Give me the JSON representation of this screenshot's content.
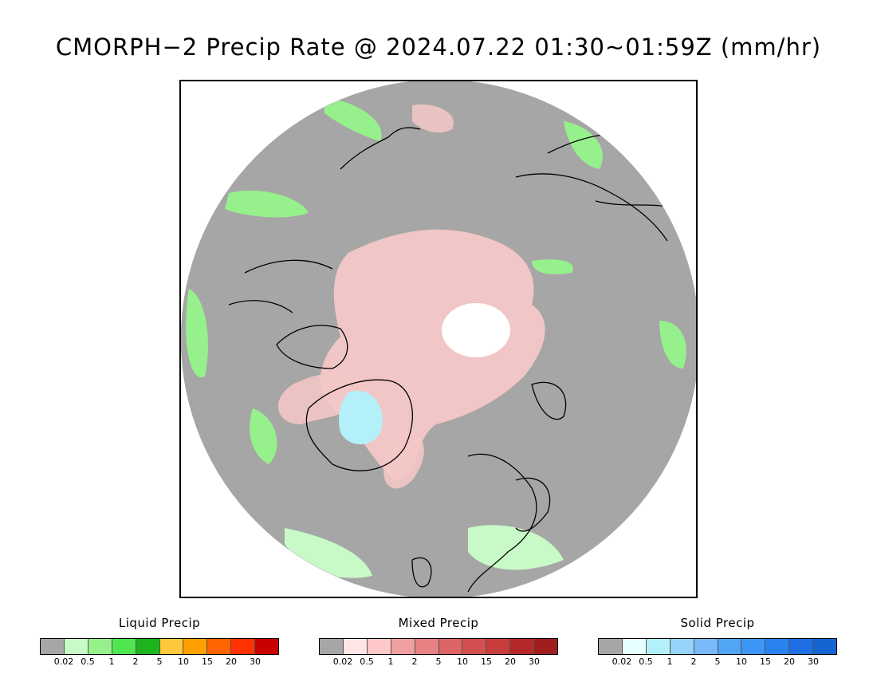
{
  "title": "CMORPH−2 Precip Rate @ 2024.07.22 01:30~01:59Z (mm/hr)",
  "map": {
    "projection": "north polar stereographic",
    "background_color": "#a6a6a6",
    "land_outline_color": "#000000"
  },
  "legends": [
    {
      "title": "Liquid Precip",
      "colors": [
        "#a6a6a6",
        "#c8fac8",
        "#96f08c",
        "#50e650",
        "#1eb41e",
        "#ffc83c",
        "#ffa000",
        "#ff6400",
        "#ff3200",
        "#c80000"
      ],
      "ticks": [
        "0.02",
        "0.5",
        "1",
        "2",
        "5",
        "10",
        "15",
        "20",
        "30"
      ]
    },
    {
      "title": "Mixed Precip",
      "colors": [
        "#a6a6a6",
        "#ffe6e6",
        "#ffc8c8",
        "#f0a0a0",
        "#e68282",
        "#dc6464",
        "#d25050",
        "#c83c3c",
        "#b42828",
        "#a01e1e"
      ],
      "ticks": [
        "0.02",
        "0.5",
        "1",
        "2",
        "5",
        "10",
        "15",
        "20",
        "30"
      ]
    },
    {
      "title": "Solid Precip",
      "colors": [
        "#a6a6a6",
        "#e6ffff",
        "#b4f0fa",
        "#96d2fa",
        "#78b9fa",
        "#50a5f5",
        "#3c96f5",
        "#2882f0",
        "#1e6ee6",
        "#1464d2"
      ],
      "ticks": [
        "0.02",
        "0.5",
        "1",
        "2",
        "5",
        "10",
        "15",
        "20",
        "30"
      ]
    }
  ]
}
